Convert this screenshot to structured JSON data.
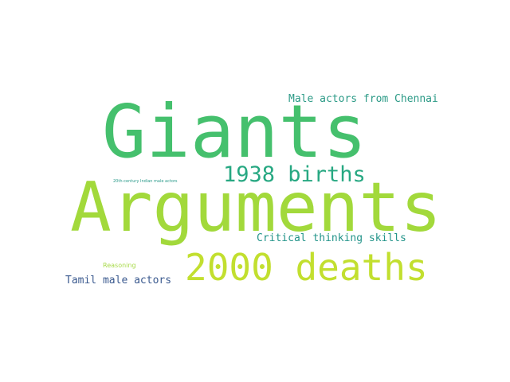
{
  "words": {
    "giants": {
      "text": "Giants",
      "color": "#45c06d"
    },
    "arguments": {
      "text": "Arguments",
      "color": "#a2d93b"
    },
    "deaths": {
      "text": "2000 deaths",
      "color": "#c2df2f"
    },
    "births": {
      "text": "1938 births",
      "color": "#27a882"
    },
    "chennai": {
      "text": "Male actors from Chennai",
      "color": "#2b9a86"
    },
    "critical": {
      "text": "Critical thinking skills",
      "color": "#23948a"
    },
    "tamil": {
      "text": "Tamil male actors",
      "color": "#3b5a8f"
    },
    "reasoning": {
      "text": "Reasoning",
      "color": "#a8da4a"
    },
    "century": {
      "text": "20th-century Indian male actors",
      "color": "#2a9a8a"
    }
  }
}
